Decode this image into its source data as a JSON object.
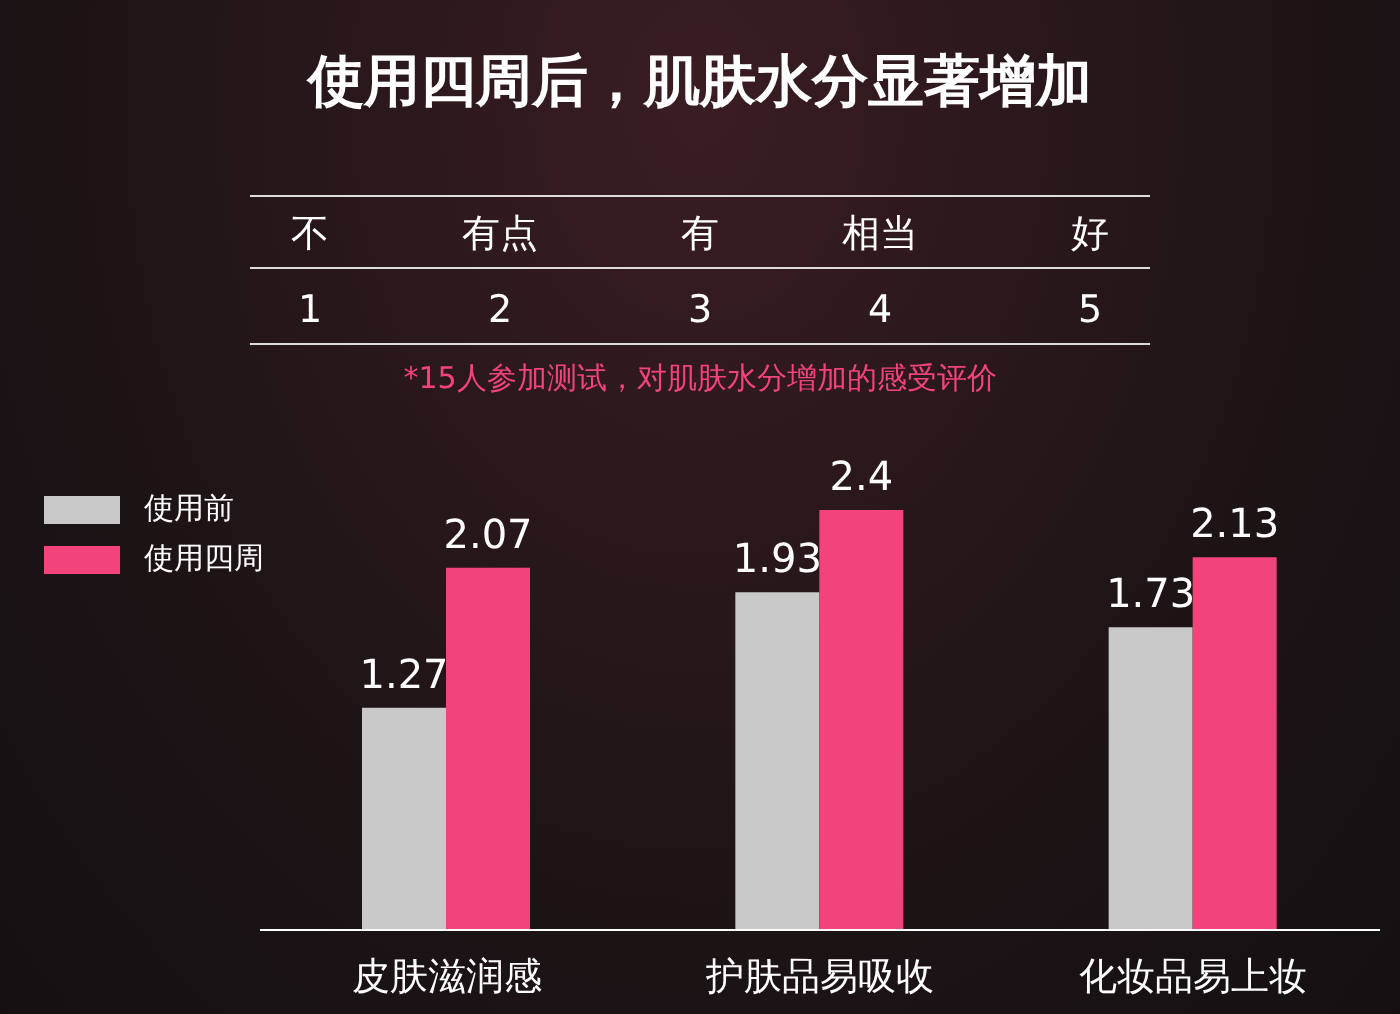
{
  "chart_data": {
    "type": "bar",
    "title": "使用四周后，肌肤水分显著增加",
    "annotations": [
      "不",
      "有点",
      "有",
      "相当",
      "好",
      "1",
      "2",
      "3",
      "4",
      "5",
      "*15人参加测试，对肌肤水分增加的感受评价"
    ],
    "categories": [
      "皮肤滋润感",
      "护肤品易吸收",
      "化妆品易上妆"
    ],
    "series": [
      {
        "name": "使用前",
        "color": "#c9c9c9",
        "values": [
          1.27,
          1.93,
          1.73
        ]
      },
      {
        "name": "使用四周",
        "color": "#f2437b",
        "values": [
          2.07,
          2.4,
          2.13
        ]
      }
    ],
    "data_labels": true,
    "legend": "top left"
  }
}
